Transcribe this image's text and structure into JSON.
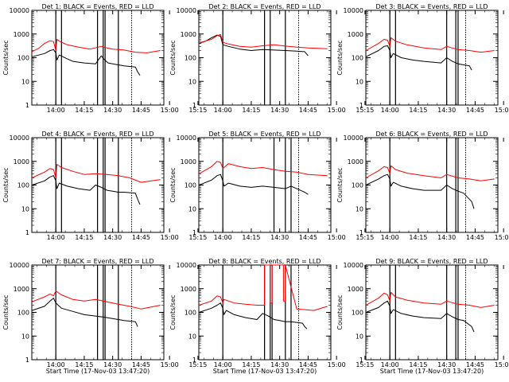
{
  "colors": {
    "black_series": "#000000",
    "red_series": "#ff0000",
    "background": "#ffffff"
  },
  "chart_data": [
    {
      "type": "line",
      "title": "Det 1: BLACK = Events, RED = LLD",
      "xlabel": "Start Time (17-Nov-03 13:47:20)",
      "ylabel": "Counts/sec",
      "y_scale": "log",
      "ylim": [
        1,
        10000
      ],
      "x_ticks": [
        "14:00",
        "14:15",
        "14:30",
        "14:45",
        "15:00",
        "15:15"
      ],
      "y_ticks": [
        "1",
        "10",
        "100",
        "1000",
        "10000"
      ],
      "show_xlabel": false,
      "markers": [
        14.0,
        14.05,
        14.3667,
        14.4167,
        14.4333,
        14.55,
        14.6667
      ],
      "series": [
        {
          "name": "Events",
          "color": "black",
          "x": [
            13.79,
            13.9,
            13.95,
            13.98,
            14.0,
            14.01,
            14.03,
            14.1,
            14.15,
            14.25,
            14.35,
            14.4,
            14.42,
            14.46,
            14.5,
            14.55,
            14.6,
            14.7,
            14.72,
            14.74
          ],
          "y": [
            110,
            150,
            200,
            220,
            160,
            80,
            130,
            90,
            70,
            60,
            55,
            120,
            90,
            60,
            55,
            50,
            45,
            40,
            25,
            18
          ]
        },
        {
          "name": "LLD",
          "color": "red",
          "x": [
            13.79,
            13.85,
            13.9,
            13.95,
            13.98,
            14.0,
            14.01,
            14.03,
            14.1,
            14.2,
            14.3,
            14.4,
            14.45,
            14.5,
            14.55,
            14.6,
            14.7,
            14.8,
            14.92
          ],
          "y": [
            180,
            250,
            400,
            520,
            480,
            200,
            600,
            500,
            350,
            280,
            230,
            300,
            260,
            230,
            220,
            210,
            170,
            160,
            200
          ]
        }
      ]
    },
    {
      "type": "line",
      "title": "Det 2: BLACK = Events, RED = LLD",
      "xlabel": "Start Time (17-Nov-03 13:47:20)",
      "ylabel": "Counts/sec",
      "y_scale": "log",
      "ylim": [
        1,
        10000
      ],
      "x_ticks": [
        "14:00",
        "14:15",
        "14:30",
        "14:45",
        "15:00",
        "15:15"
      ],
      "y_ticks": [
        "1",
        "10",
        "100",
        "1000",
        "10000"
      ],
      "show_xlabel": false,
      "markers": [
        14.0,
        14.3667,
        14.4167,
        14.55,
        14.6667
      ],
      "series": [
        {
          "name": "Events",
          "color": "black",
          "x": [
            13.79,
            13.85,
            13.9,
            13.95,
            13.98,
            14.0,
            14.05,
            14.15,
            14.25,
            14.35,
            14.45,
            14.55,
            14.65,
            14.72,
            14.75
          ],
          "y": [
            400,
            500,
            700,
            900,
            800,
            350,
            300,
            230,
            200,
            220,
            210,
            200,
            190,
            180,
            120
          ]
        },
        {
          "name": "LLD",
          "color": "red",
          "x": [
            13.79,
            13.9,
            13.95,
            13.98,
            14.0,
            14.05,
            14.15,
            14.25,
            14.35,
            14.45,
            14.55,
            14.65,
            14.75,
            14.92
          ],
          "y": [
            420,
            600,
            850,
            950,
            450,
            380,
            300,
            280,
            320,
            350,
            310,
            280,
            260,
            240
          ]
        }
      ]
    },
    {
      "type": "line",
      "title": "Det 3: BLACK = Events, RED = LLD",
      "xlabel": "Start Time (17-Nov-03 13:47:20)",
      "ylabel": "Counts/sec",
      "y_scale": "log",
      "ylim": [
        1,
        10000
      ],
      "x_ticks": [
        "14:00",
        "14:15",
        "14:30",
        "14:45",
        "15:00",
        "15:15"
      ],
      "y_ticks": [
        "1",
        "10",
        "100",
        "1000",
        "10000"
      ],
      "show_xlabel": false,
      "markers": [
        14.0,
        14.05,
        14.5,
        14.58,
        14.6,
        14.6667
      ],
      "series": [
        {
          "name": "Events",
          "color": "black",
          "x": [
            13.79,
            13.9,
            13.95,
            13.98,
            14.0,
            14.01,
            14.03,
            14.1,
            14.2,
            14.3,
            14.45,
            14.5,
            14.55,
            14.6,
            14.65,
            14.7,
            14.72
          ],
          "y": [
            110,
            200,
            300,
            320,
            200,
            100,
            150,
            100,
            80,
            70,
            60,
            100,
            70,
            55,
            50,
            45,
            30
          ]
        },
        {
          "name": "LLD",
          "color": "red",
          "x": [
            13.79,
            13.9,
            13.95,
            13.98,
            14.0,
            14.01,
            14.05,
            14.15,
            14.3,
            14.45,
            14.5,
            14.6,
            14.7,
            14.8,
            14.92
          ],
          "y": [
            200,
            400,
            600,
            550,
            300,
            700,
            500,
            350,
            260,
            220,
            300,
            220,
            200,
            170,
            200
          ]
        }
      ]
    },
    {
      "type": "line",
      "title": "Det 4: BLACK = Events, RED = LLD",
      "xlabel": "Start Time (17-Nov-03 13:47:20)",
      "ylabel": "Counts/sec",
      "y_scale": "log",
      "ylim": [
        1,
        10000
      ],
      "x_ticks": [
        "14:00",
        "14:15",
        "14:30",
        "14:45",
        "15:00",
        "15:15"
      ],
      "y_ticks": [
        "1",
        "10",
        "100",
        "1000",
        "10000"
      ],
      "show_xlabel": false,
      "markers": [
        14.0,
        14.05,
        14.3667,
        14.4167,
        14.4333,
        14.55,
        14.6667
      ],
      "series": [
        {
          "name": "Events",
          "color": "black",
          "x": [
            13.79,
            13.9,
            13.95,
            13.98,
            14.0,
            14.01,
            14.03,
            14.1,
            14.2,
            14.3,
            14.35,
            14.4,
            14.45,
            14.5,
            14.55,
            14.6,
            14.7,
            14.72,
            14.74
          ],
          "y": [
            100,
            150,
            220,
            250,
            150,
            70,
            120,
            90,
            70,
            60,
            100,
            80,
            60,
            55,
            50,
            50,
            45,
            25,
            15
          ]
        },
        {
          "name": "LLD",
          "color": "red",
          "x": [
            13.79,
            13.9,
            13.95,
            13.98,
            14.0,
            14.01,
            14.05,
            14.15,
            14.25,
            14.35,
            14.45,
            14.55,
            14.65,
            14.75,
            14.92
          ],
          "y": [
            200,
            350,
            500,
            450,
            200,
            750,
            550,
            380,
            280,
            300,
            280,
            250,
            200,
            130,
            170
          ]
        }
      ]
    },
    {
      "type": "line",
      "title": "Det 5: BLACK = Events, RED = LLD",
      "xlabel": "Start Time (17-Nov-03 13:47:20)",
      "ylabel": "Counts/sec",
      "y_scale": "log",
      "ylim": [
        1,
        10000
      ],
      "x_ticks": [
        "14:00",
        "14:15",
        "14:30",
        "14:45",
        "15:00",
        "15:15"
      ],
      "y_ticks": [
        "1",
        "10",
        "100",
        "1000",
        "10000"
      ],
      "show_xlabel": false,
      "markers": [
        14.0,
        14.45,
        14.55,
        14.6,
        14.6667
      ],
      "series": [
        {
          "name": "Events",
          "color": "black",
          "x": [
            13.79,
            13.9,
            13.95,
            13.98,
            14.0,
            14.01,
            14.05,
            14.15,
            14.25,
            14.35,
            14.45,
            14.55,
            14.6,
            14.65,
            14.72,
            14.75
          ],
          "y": [
            100,
            160,
            250,
            280,
            150,
            90,
            120,
            90,
            80,
            90,
            80,
            70,
            90,
            70,
            50,
            40
          ]
        },
        {
          "name": "LLD",
          "color": "red",
          "x": [
            13.79,
            13.9,
            13.95,
            13.98,
            14.0,
            14.05,
            14.15,
            14.25,
            14.35,
            14.45,
            14.55,
            14.65,
            14.75,
            14.92
          ],
          "y": [
            300,
            600,
            1000,
            900,
            500,
            800,
            600,
            500,
            550,
            450,
            380,
            350,
            280,
            250
          ]
        }
      ]
    },
    {
      "type": "line",
      "title": "Det 6: BLACK = Events, RED = LLD",
      "xlabel": "Start Time (17-Nov-03 13:47:20)",
      "ylabel": "Counts/sec",
      "y_scale": "log",
      "ylim": [
        1,
        10000
      ],
      "x_ticks": [
        "14:00",
        "14:15",
        "14:30",
        "14:45",
        "15:00",
        "15:15"
      ],
      "y_ticks": [
        "1",
        "10",
        "100",
        "1000",
        "10000"
      ],
      "show_xlabel": false,
      "markers": [
        14.0,
        14.5,
        14.58,
        14.6,
        14.6667
      ],
      "series": [
        {
          "name": "Events",
          "color": "black",
          "x": [
            13.79,
            13.9,
            13.95,
            13.98,
            14.0,
            14.01,
            14.03,
            14.1,
            14.2,
            14.3,
            14.45,
            14.5,
            14.55,
            14.6,
            14.65,
            14.72,
            14.74
          ],
          "y": [
            100,
            180,
            250,
            280,
            180,
            90,
            130,
            90,
            70,
            60,
            60,
            100,
            70,
            55,
            45,
            20,
            10
          ]
        },
        {
          "name": "LLD",
          "color": "red",
          "x": [
            13.79,
            13.9,
            13.95,
            13.98,
            14.0,
            14.01,
            14.05,
            14.15,
            14.3,
            14.45,
            14.5,
            14.6,
            14.7,
            14.8,
            14.92
          ],
          "y": [
            200,
            400,
            600,
            550,
            300,
            650,
            450,
            320,
            250,
            200,
            280,
            200,
            180,
            150,
            180
          ]
        }
      ]
    },
    {
      "type": "line",
      "title": "Det 7: BLACK = Events, RED = LLD",
      "xlabel": "Start Time (17-Nov-03 13:47:20)",
      "ylabel": "Counts/sec",
      "y_scale": "log",
      "ylim": [
        1,
        10000
      ],
      "x_ticks": [
        "14:00",
        "14:15",
        "14:30",
        "14:45",
        "15:00",
        "15:15"
      ],
      "y_ticks": [
        "1",
        "10",
        "100",
        "1000",
        "10000"
      ],
      "show_xlabel": true,
      "markers": [
        14.0,
        14.3667,
        14.4167,
        14.4333,
        14.55,
        14.6667
      ],
      "series": [
        {
          "name": "Events",
          "color": "black",
          "x": [
            13.79,
            13.9,
            13.95,
            13.98,
            14.0,
            14.05,
            14.15,
            14.25,
            14.35,
            14.45,
            14.55,
            14.6,
            14.7,
            14.72
          ],
          "y": [
            120,
            180,
            300,
            400,
            250,
            150,
            110,
            80,
            70,
            60,
            50,
            45,
            40,
            25
          ]
        },
        {
          "name": "LLD",
          "color": "red",
          "x": [
            13.79,
            13.9,
            13.95,
            13.98,
            14.0,
            14.05,
            14.15,
            14.25,
            14.35,
            14.45,
            14.55,
            14.65,
            14.75,
            14.92
          ],
          "y": [
            280,
            450,
            600,
            500,
            800,
            550,
            350,
            300,
            350,
            280,
            220,
            180,
            140,
            200
          ]
        }
      ]
    },
    {
      "type": "line",
      "title": "Det 8: BLACK = Events, RED = LLD",
      "xlabel": "Start Time (17-Nov-03 13:47:20)",
      "ylabel": "Counts/sec",
      "y_scale": "log",
      "ylim": [
        1,
        10000
      ],
      "x_ticks": [
        "14:00",
        "14:15",
        "14:30",
        "14:45",
        "15:00",
        "15:15"
      ],
      "y_ticks": [
        "1",
        "10",
        "100",
        "1000",
        "10000"
      ],
      "show_xlabel": true,
      "markers": [
        14.0,
        14.3667,
        14.4167,
        14.4333,
        14.55,
        14.6,
        14.6667
      ],
      "series": [
        {
          "name": "Events",
          "color": "black",
          "x": [
            13.79,
            13.9,
            13.95,
            13.98,
            14.0,
            14.01,
            14.03,
            14.1,
            14.2,
            14.3,
            14.35,
            14.4,
            14.45,
            14.5,
            14.55,
            14.6,
            14.7,
            14.72,
            14.74
          ],
          "y": [
            100,
            150,
            200,
            250,
            150,
            80,
            120,
            80,
            60,
            50,
            90,
            70,
            50,
            45,
            40,
            40,
            35,
            25,
            20
          ]
        },
        {
          "name": "LLD",
          "color": "red",
          "x": [
            13.79,
            13.9,
            13.95,
            13.98,
            14.0,
            14.01,
            14.1,
            14.2,
            14.3,
            14.3667,
            14.3668,
            14.4167,
            14.4168,
            14.4333,
            14.4334,
            14.5,
            14.5333,
            14.5334,
            14.55,
            14.5501,
            14.65,
            14.8,
            14.92
          ],
          "y": [
            200,
            300,
            500,
            450,
            250,
            350,
            250,
            220,
            200,
            200,
            10000,
            10000,
            250,
            250,
            10000,
            10000,
            10000,
            300,
            300,
            10000,
            140,
            120,
            180
          ]
        }
      ]
    },
    {
      "type": "line",
      "title": "Det 9: BLACK = Events, RED = LLD",
      "xlabel": "Start Time (17-Nov-03 13:47:20)",
      "ylabel": "Counts/sec",
      "y_scale": "log",
      "ylim": [
        1,
        10000
      ],
      "x_ticks": [
        "14:00",
        "14:15",
        "14:30",
        "14:45",
        "15:00",
        "15:15"
      ],
      "y_ticks": [
        "1",
        "10",
        "100",
        "1000",
        "10000"
      ],
      "show_xlabel": true,
      "markers": [
        14.0,
        14.05,
        14.5,
        14.58,
        14.6,
        14.6667
      ],
      "series": [
        {
          "name": "Events",
          "color": "black",
          "x": [
            13.79,
            13.9,
            13.95,
            13.98,
            14.0,
            14.01,
            14.03,
            14.1,
            14.2,
            14.3,
            14.45,
            14.5,
            14.55,
            14.6,
            14.65,
            14.72,
            14.74
          ],
          "y": [
            100,
            160,
            250,
            300,
            180,
            90,
            130,
            90,
            70,
            60,
            55,
            90,
            65,
            50,
            45,
            25,
            15
          ]
        },
        {
          "name": "LLD",
          "color": "red",
          "x": [
            13.79,
            13.9,
            13.95,
            13.98,
            14.0,
            14.01,
            14.05,
            14.15,
            14.3,
            14.45,
            14.5,
            14.6,
            14.7,
            14.8,
            14.92
          ],
          "y": [
            200,
            400,
            650,
            550,
            300,
            700,
            450,
            330,
            250,
            220,
            300,
            220,
            200,
            160,
            200
          ]
        }
      ]
    }
  ]
}
